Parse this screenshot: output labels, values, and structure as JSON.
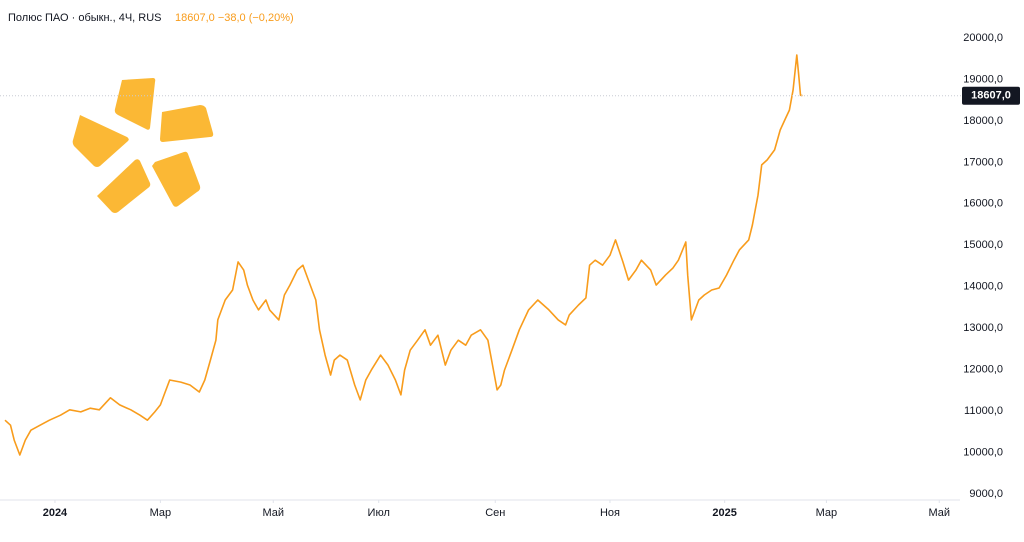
{
  "chart_data": {
    "type": "line",
    "title": "Полюс ПАО · обыкн., 4Ч, RUS",
    "subtitle": "18607,0  −38,0 (−0,20%)",
    "x": [
      0,
      3,
      5,
      8,
      11,
      14,
      19,
      24,
      30,
      35,
      41,
      46,
      51,
      57,
      62,
      68,
      73,
      77,
      81,
      84,
      86,
      89,
      95,
      100,
      105,
      108,
      111,
      114,
      115,
      119,
      123,
      126,
      129,
      131,
      134,
      137,
      141,
      143,
      148,
      151,
      154,
      158,
      161,
      164,
      168,
      170,
      173,
      176,
      178,
      181,
      185,
      189,
      192,
      195,
      198,
      203,
      207,
      211,
      214,
      216,
      219,
      223,
      227,
      230,
      234,
      238,
      241,
      245,
      249,
      252,
      257,
      261,
      263,
      266,
      268,
      270,
      274,
      278,
      283,
      288,
      294,
      299,
      303,
      305,
      310,
      314,
      316,
      319,
      323,
      327,
      330,
      334,
      337,
      341,
      344,
      349,
      352,
      357,
      361,
      364,
      368,
      369,
      371,
      375,
      378,
      382,
      386,
      390,
      394,
      397,
      402,
      404,
      407,
      409,
      412,
      416,
      419,
      422,
      424,
      426,
      428,
      429,
      430,
      431
    ],
    "series": [
      {
        "name": "Полюс ПАО",
        "color": "#f89c1c",
        "values": [
          10780,
          10660,
          10300,
          9940,
          10300,
          10540,
          10660,
          10780,
          10900,
          11030,
          10980,
          11070,
          11030,
          11320,
          11150,
          11030,
          10900,
          10780,
          10980,
          11150,
          11390,
          11750,
          11700,
          11630,
          11460,
          11750,
          12230,
          12710,
          13200,
          13680,
          13920,
          14600,
          14400,
          14040,
          13680,
          13440,
          13680,
          13440,
          13200,
          13800,
          14040,
          14400,
          14520,
          14160,
          13680,
          12960,
          12350,
          11870,
          12230,
          12350,
          12230,
          11630,
          11270,
          11750,
          11990,
          12350,
          12110,
          11750,
          11390,
          11990,
          12470,
          12710,
          12960,
          12590,
          12830,
          12110,
          12470,
          12710,
          12590,
          12830,
          12960,
          12710,
          12230,
          11510,
          11630,
          11990,
          12470,
          12960,
          13440,
          13680,
          13440,
          13200,
          13080,
          13320,
          13560,
          13730,
          14520,
          14640,
          14520,
          14760,
          15130,
          14600,
          14160,
          14400,
          14640,
          14400,
          14040,
          14280,
          14450,
          14640,
          15080,
          14280,
          13200,
          13680,
          13800,
          13920,
          13970,
          14280,
          14640,
          14890,
          15130,
          15490,
          16210,
          16940,
          17060,
          17300,
          17780,
          18070,
          18260,
          18750,
          19590,
          19110,
          18620,
          18607
        ]
      }
    ],
    "xlim": [
      -2.7,
      513.5
    ],
    "xticks": [
      {
        "value": 27,
        "label": "2024"
      },
      {
        "value": 84,
        "label": "Мар"
      },
      {
        "value": 145,
        "label": "Май"
      },
      {
        "value": 202,
        "label": "Июл"
      },
      {
        "value": 265,
        "label": "Сен"
      },
      {
        "value": 327,
        "label": "Ноя"
      },
      {
        "value": 389,
        "label": "2025"
      },
      {
        "value": 444,
        "label": "Мар"
      },
      {
        "value": 505,
        "label": "Май"
      }
    ],
    "ylim": [
      9000,
      20000
    ],
    "yticks": [
      {
        "value": 9000,
        "label": "9000,0"
      },
      {
        "value": 10000,
        "label": "10000,0"
      },
      {
        "value": 11000,
        "label": "11000,0"
      },
      {
        "value": 12000,
        "label": "12000,0"
      },
      {
        "value": 13000,
        "label": "13000,0"
      },
      {
        "value": 14000,
        "label": "14000,0"
      },
      {
        "value": 15000,
        "label": "15000,0"
      },
      {
        "value": 16000,
        "label": "16000,0"
      },
      {
        "value": 17000,
        "label": "17000,0"
      },
      {
        "value": 18000,
        "label": "18000,0"
      },
      {
        "value": 19000,
        "label": "19000,0"
      },
      {
        "value": 20000,
        "label": "20000,0"
      }
    ],
    "price_line": {
      "value": 18607,
      "label": "18607,0"
    },
    "grid": false
  }
}
